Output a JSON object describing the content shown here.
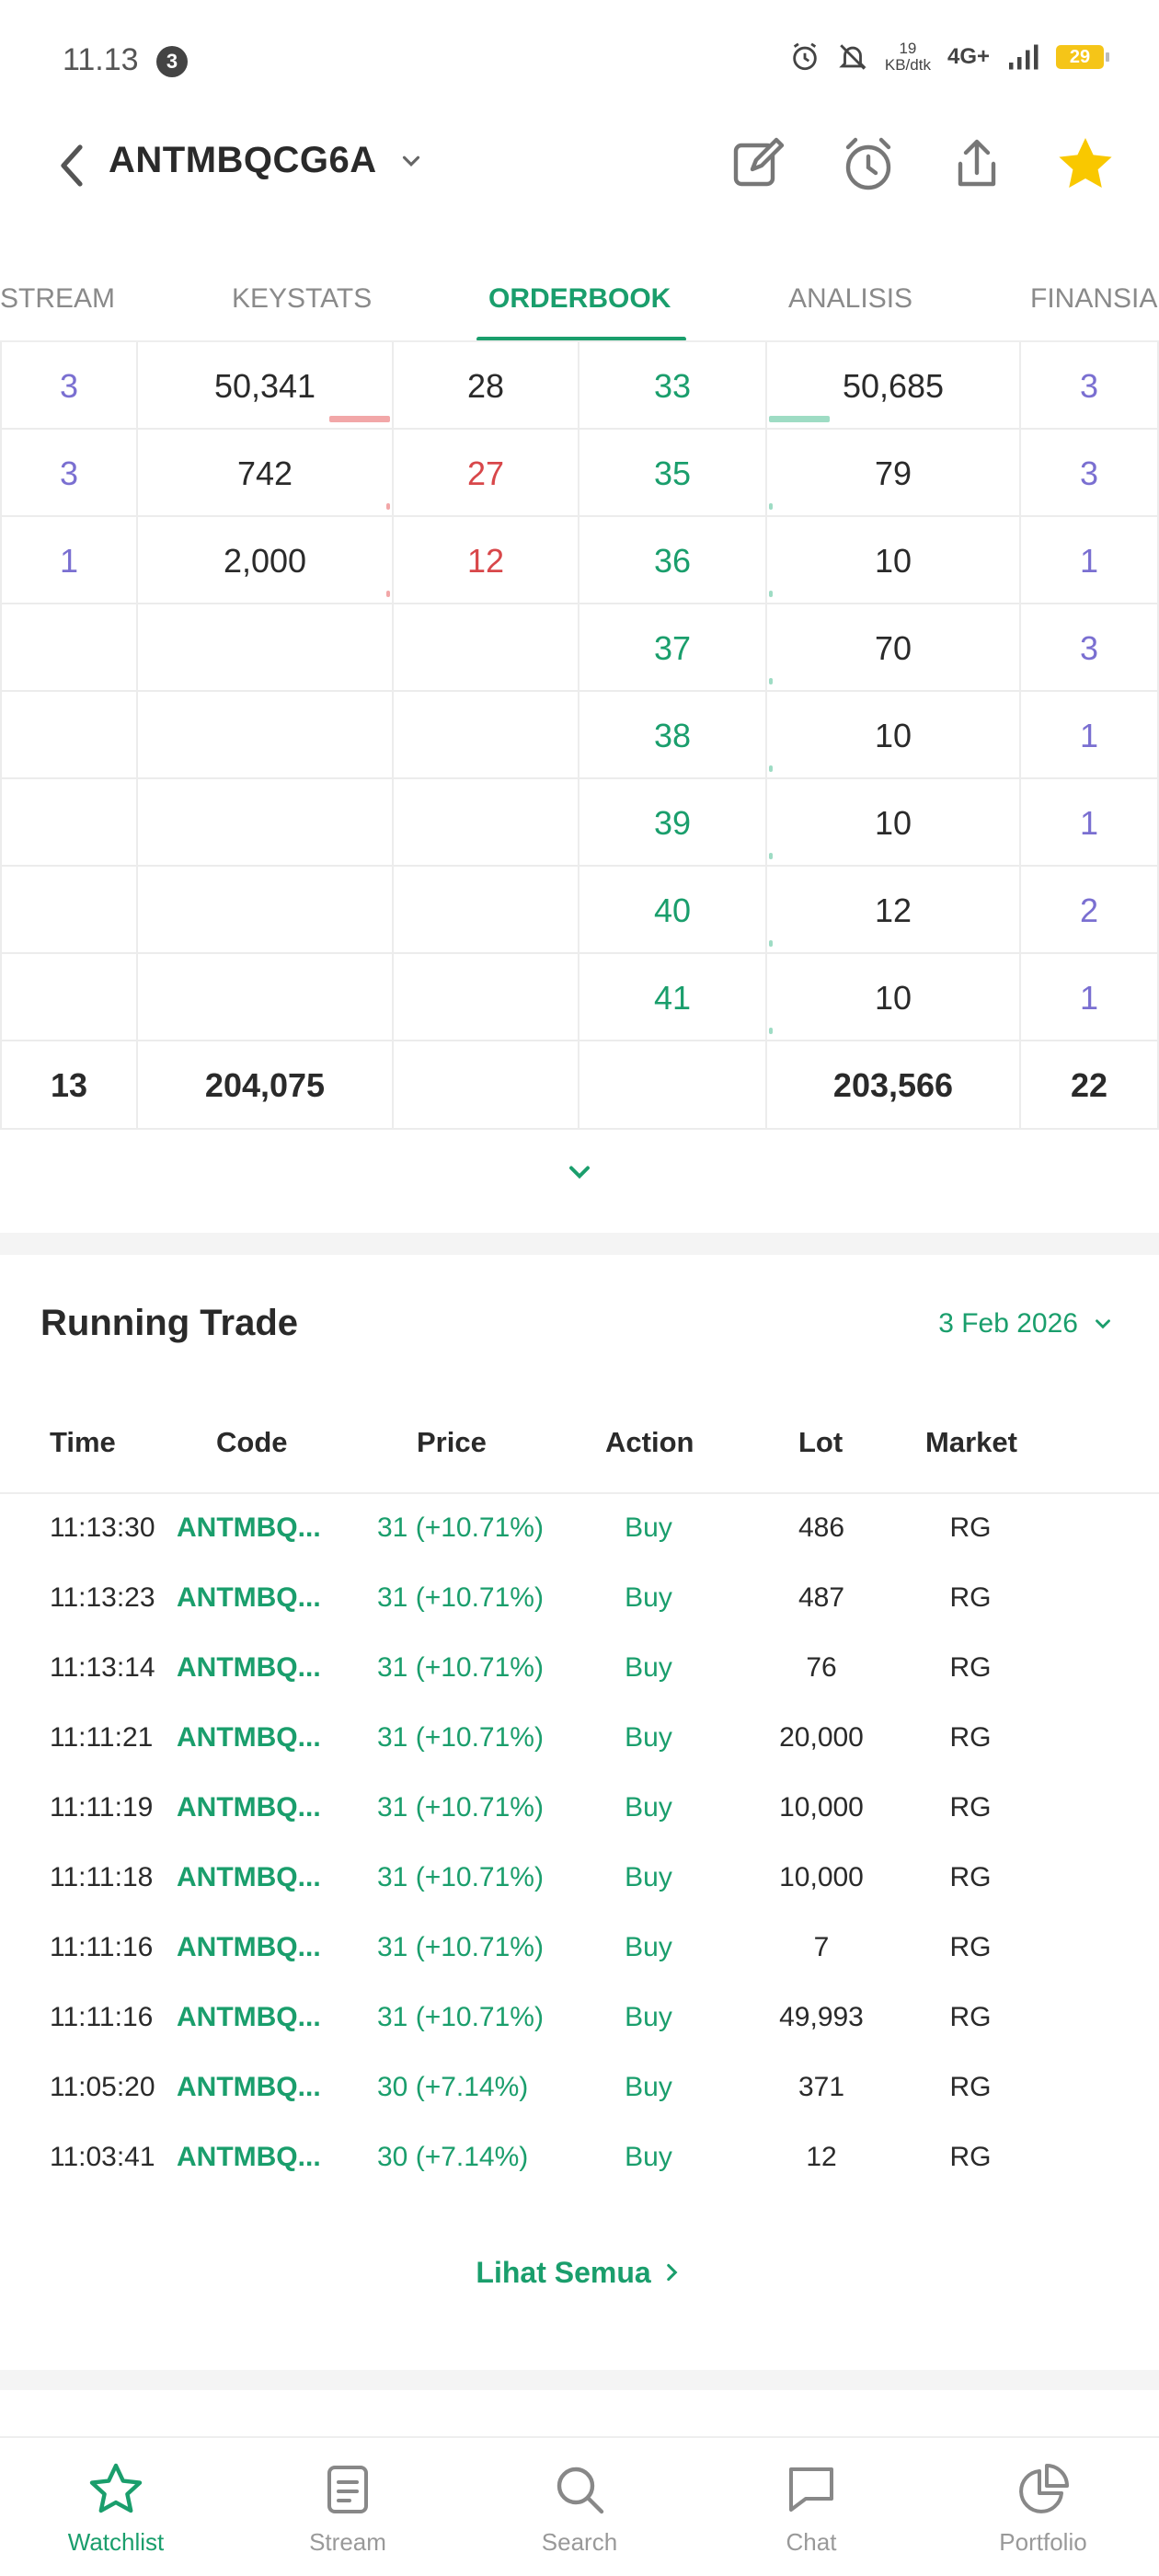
{
  "status_bar": {
    "time": "11.13",
    "notification_count": "3",
    "speed_value": "19",
    "speed_unit": "KB/dtk",
    "network": "4G+",
    "battery": "29"
  },
  "header": {
    "ticker": "ANTMBQCG6A"
  },
  "tabs": [
    {
      "label": "STREAM"
    },
    {
      "label": "KEYSTATS"
    },
    {
      "label": "ORDERBOOK"
    },
    {
      "label": "ANALISIS"
    },
    {
      "label": "FINANSIAL"
    }
  ],
  "orderbook": {
    "rows": [
      {
        "bid_freq": "3",
        "bid_lot": "50,341",
        "bid_price": "28",
        "offer_price": "33",
        "offer_lot": "50,685",
        "offer_freq": "3"
      },
      {
        "bid_freq": "3",
        "bid_lot": "742",
        "bid_price": "27",
        "offer_price": "35",
        "offer_lot": "79",
        "offer_freq": "3"
      },
      {
        "bid_freq": "1",
        "bid_lot": "2,000",
        "bid_price": "12",
        "offer_price": "36",
        "offer_lot": "10",
        "offer_freq": "1"
      },
      {
        "bid_freq": "",
        "bid_lot": "",
        "bid_price": "",
        "offer_price": "37",
        "offer_lot": "70",
        "offer_freq": "3"
      },
      {
        "bid_freq": "",
        "bid_lot": "",
        "bid_price": "",
        "offer_price": "38",
        "offer_lot": "10",
        "offer_freq": "1"
      },
      {
        "bid_freq": "",
        "bid_lot": "",
        "bid_price": "",
        "offer_price": "39",
        "offer_lot": "10",
        "offer_freq": "1"
      },
      {
        "bid_freq": "",
        "bid_lot": "",
        "bid_price": "",
        "offer_price": "40",
        "offer_lot": "12",
        "offer_freq": "2"
      },
      {
        "bid_freq": "",
        "bid_lot": "",
        "bid_price": "",
        "offer_price": "41",
        "offer_lot": "10",
        "offer_freq": "1"
      }
    ],
    "totals": {
      "bid_freq": "13",
      "bid_lot": "204,075",
      "offer_lot": "203,566",
      "offer_freq": "22"
    }
  },
  "running_trade": {
    "title": "Running Trade",
    "date": "3 Feb 2026",
    "headers": {
      "time": "Time",
      "code": "Code",
      "price": "Price",
      "action": "Action",
      "lot": "Lot",
      "market": "Market"
    },
    "rows": [
      {
        "time": "11:13:30",
        "code": "ANTMBQ...",
        "price": "31 (+10.71%)",
        "action": "Buy",
        "lot": "486",
        "market": "RG"
      },
      {
        "time": "11:13:23",
        "code": "ANTMBQ...",
        "price": "31 (+10.71%)",
        "action": "Buy",
        "lot": "487",
        "market": "RG"
      },
      {
        "time": "11:13:14",
        "code": "ANTMBQ...",
        "price": "31 (+10.71%)",
        "action": "Buy",
        "lot": "76",
        "market": "RG"
      },
      {
        "time": "11:11:21",
        "code": "ANTMBQ...",
        "price": "31 (+10.71%)",
        "action": "Buy",
        "lot": "20,000",
        "market": "RG"
      },
      {
        "time": "11:11:19",
        "code": "ANTMBQ...",
        "price": "31 (+10.71%)",
        "action": "Buy",
        "lot": "10,000",
        "market": "RG"
      },
      {
        "time": "11:11:18",
        "code": "ANTMBQ...",
        "price": "31 (+10.71%)",
        "action": "Buy",
        "lot": "10,000",
        "market": "RG"
      },
      {
        "time": "11:11:16",
        "code": "ANTMBQ...",
        "price": "31 (+10.71%)",
        "action": "Buy",
        "lot": "7",
        "market": "RG"
      },
      {
        "time": "11:11:16",
        "code": "ANTMBQ...",
        "price": "31 (+10.71%)",
        "action": "Buy",
        "lot": "49,993",
        "market": "RG"
      },
      {
        "time": "11:05:20",
        "code": "ANTMBQ...",
        "price": "30 (+7.14%)",
        "action": "Buy",
        "lot": "371",
        "market": "RG"
      },
      {
        "time": "11:03:41",
        "code": "ANTMBQ...",
        "price": "30 (+7.14%)",
        "action": "Buy",
        "lot": "12",
        "market": "RG"
      }
    ],
    "see_all": "Lihat Semua"
  },
  "bottom_nav": [
    {
      "label": "Watchlist",
      "icon": "star-outline-icon"
    },
    {
      "label": "Stream",
      "icon": "stream-icon"
    },
    {
      "label": "Search",
      "icon": "search-icon"
    },
    {
      "label": "Chat",
      "icon": "chat-icon"
    },
    {
      "label": "Portfolio",
      "icon": "pie-chart-icon"
    }
  ],
  "colors": {
    "accent": "#1a9e6c",
    "bid_price": "#d8474a",
    "freq": "#7a6fd1",
    "favorite_star": "#f9c800"
  }
}
